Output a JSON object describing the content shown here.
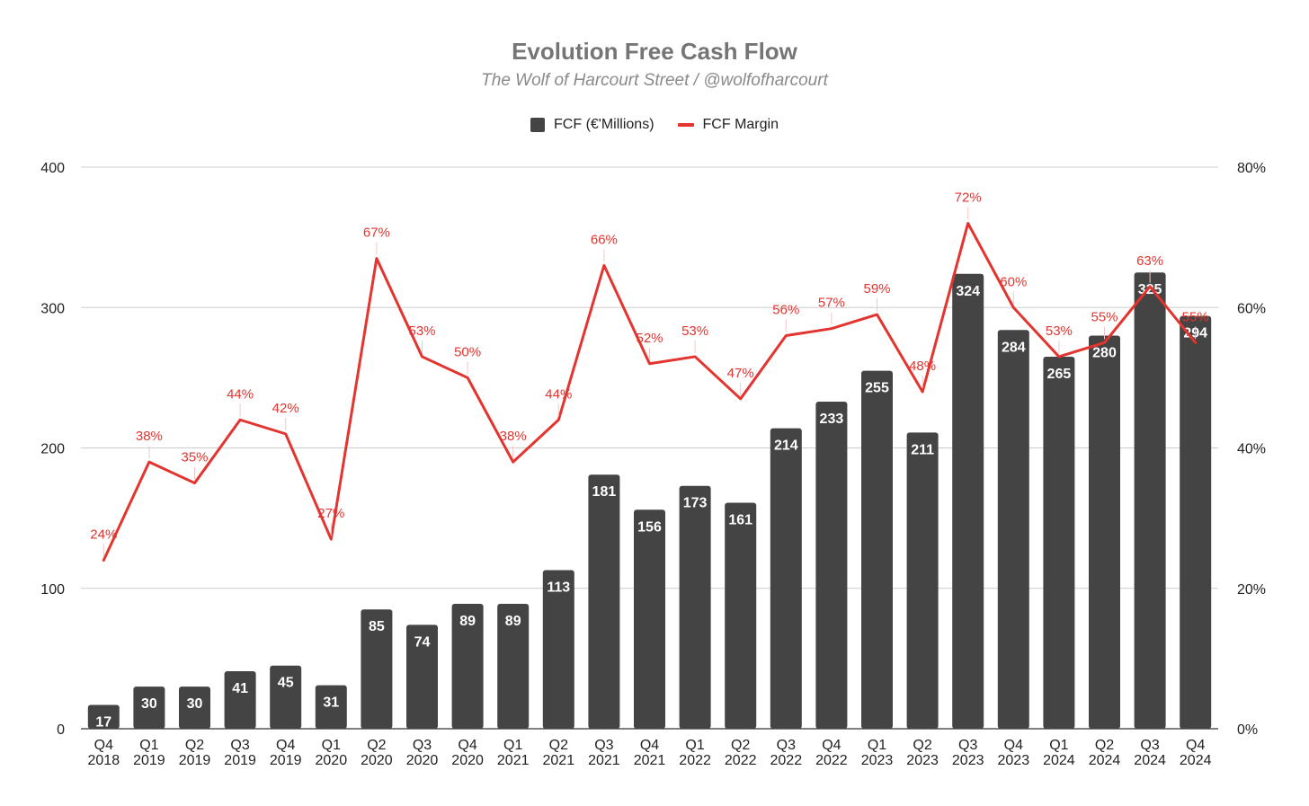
{
  "chart_data": {
    "type": "bar",
    "title": "Evolution Free Cash Flow",
    "subtitle": "The Wolf of Harcourt Street / @wolfofharcourt",
    "categories": [
      [
        "Q4",
        "2018"
      ],
      [
        "Q1",
        "2019"
      ],
      [
        "Q2",
        "2019"
      ],
      [
        "Q3",
        "2019"
      ],
      [
        "Q4",
        "2019"
      ],
      [
        "Q1",
        "2020"
      ],
      [
        "Q2",
        "2020"
      ],
      [
        "Q3",
        "2020"
      ],
      [
        "Q4",
        "2020"
      ],
      [
        "Q1",
        "2021"
      ],
      [
        "Q2",
        "2021"
      ],
      [
        "Q3",
        "2021"
      ],
      [
        "Q4",
        "2021"
      ],
      [
        "Q1",
        "2022"
      ],
      [
        "Q2",
        "2022"
      ],
      [
        "Q3",
        "2022"
      ],
      [
        "Q4",
        "2022"
      ],
      [
        "Q1",
        "2023"
      ],
      [
        "Q2",
        "2023"
      ],
      [
        "Q3",
        "2023"
      ],
      [
        "Q4",
        "2023"
      ],
      [
        "Q1",
        "2024"
      ],
      [
        "Q2",
        "2024"
      ],
      [
        "Q3",
        "2024"
      ],
      [
        "Q4",
        "2024"
      ]
    ],
    "series": [
      {
        "name": "FCF (€'Millions)",
        "type": "bar",
        "axis": "left",
        "color": "#444444",
        "values": [
          17,
          30,
          30,
          41,
          45,
          31,
          85,
          74,
          89,
          89,
          113,
          181,
          156,
          173,
          161,
          214,
          233,
          255,
          211,
          324,
          284,
          265,
          280,
          325,
          294
        ]
      },
      {
        "name": "FCF Margin",
        "type": "line",
        "axis": "right",
        "color": "#e3342f",
        "values": [
          24,
          38,
          35,
          44,
          42,
          27,
          67,
          53,
          50,
          38,
          44,
          66,
          52,
          53,
          47,
          56,
          57,
          59,
          48,
          72,
          60,
          53,
          55,
          63,
          55
        ],
        "labels": [
          "24%",
          "38%",
          "35%",
          "44%",
          "42%",
          "27%",
          "67%",
          "53%",
          "50%",
          "38%",
          "44%",
          "66%",
          "52%",
          "53%",
          "47%",
          "56%",
          "57%",
          "59%",
          "48%",
          "72%",
          "60%",
          "53%",
          "55%",
          "63%",
          "55%"
        ]
      }
    ],
    "left_axis": {
      "ylim": [
        0,
        400
      ],
      "ticks": [
        "0",
        "100",
        "200",
        "300",
        "400"
      ]
    },
    "right_axis": {
      "ylim": [
        0,
        80
      ],
      "ticks": [
        "0%",
        "20%",
        "40%",
        "60%",
        "80%"
      ]
    },
    "grid": true,
    "legend_position": "top-center"
  }
}
